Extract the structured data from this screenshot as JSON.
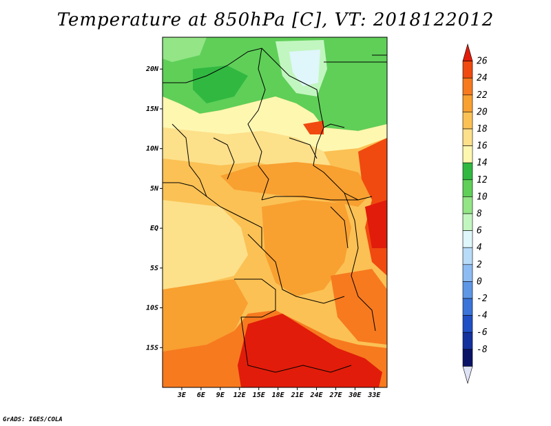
{
  "title": "Temperature at 850hPa [C], VT: 2018122012",
  "credit": "GrADS: IGES/COLA",
  "map": {
    "lon_range": [
      0,
      35
    ],
    "lat_range": [
      -20,
      24
    ],
    "lat_labels": [
      "20N",
      "15N",
      "10N",
      "5N",
      "EQ",
      "5S",
      "10S",
      "15S"
    ],
    "lat_values": [
      20,
      15,
      10,
      5,
      0,
      -5,
      -10,
      -15
    ],
    "lon_labels": [
      "3E",
      "6E",
      "9E",
      "12E",
      "15E",
      "18E",
      "21E",
      "24E",
      "27E",
      "30E",
      "33E"
    ],
    "lon_values": [
      3,
      6,
      9,
      12,
      15,
      18,
      21,
      24,
      27,
      30,
      33
    ]
  },
  "colorbar": {
    "labels": [
      "26",
      "24",
      "22",
      "20",
      "18",
      "16",
      "14",
      "12",
      "10",
      "8",
      "6",
      "4",
      "2",
      "0",
      "-2",
      "-4",
      "-6",
      "-8"
    ],
    "colors": [
      "#e11c0a",
      "#f04a10",
      "#f77a1f",
      "#f8a030",
      "#fbc154",
      "#fde08a",
      "#fef7b0",
      "#31b841",
      "#5fcf58",
      "#93e586",
      "#c2f6c0",
      "#dff6fa",
      "#b8dbf8",
      "#8dbcf2",
      "#5e97e6",
      "#3a74d9",
      "#1f4fc4",
      "#14329e",
      "#0a1466",
      "#dfe3f6"
    ]
  }
}
